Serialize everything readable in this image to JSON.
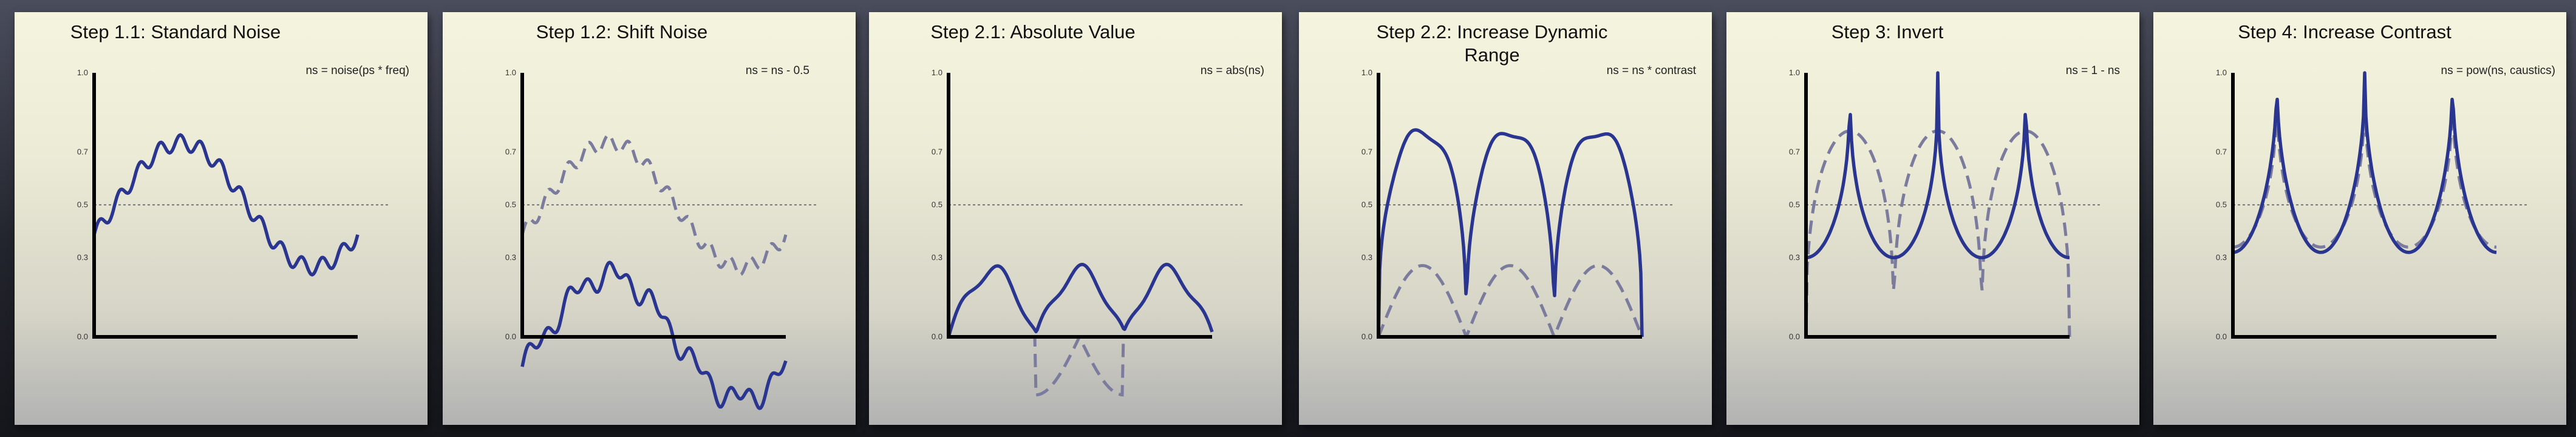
{
  "colors": {
    "curve": "#2a3590",
    "ghost": "#7b7b9e",
    "axis": "#000000",
    "midline": "#555555"
  },
  "y_ticks": [
    "1.0",
    "0.7",
    "0.5",
    "0.3",
    "0.0"
  ],
  "panels": [
    {
      "title": "Step 1.1: Standard Noise",
      "equation": "ns = noise(ps * freq)",
      "kind": "noise"
    },
    {
      "title": "Step 1.2: Shift Noise",
      "equation": "ns = ns - 0.5",
      "kind": "shift"
    },
    {
      "title": "Step 2.1: Absolute Value",
      "equation": "ns = abs(ns)",
      "kind": "abs"
    },
    {
      "title": "Step 2.2: Increase Dynamic\nRange",
      "equation": "ns = ns * contrast",
      "kind": "contrast"
    },
    {
      "title": "Step 3: Invert",
      "equation": "ns = 1 - ns",
      "kind": "invert"
    },
    {
      "title": "Step 4: Increase Contrast",
      "equation": "ns = pow(ns, caustics)",
      "kind": "pow"
    }
  ]
}
